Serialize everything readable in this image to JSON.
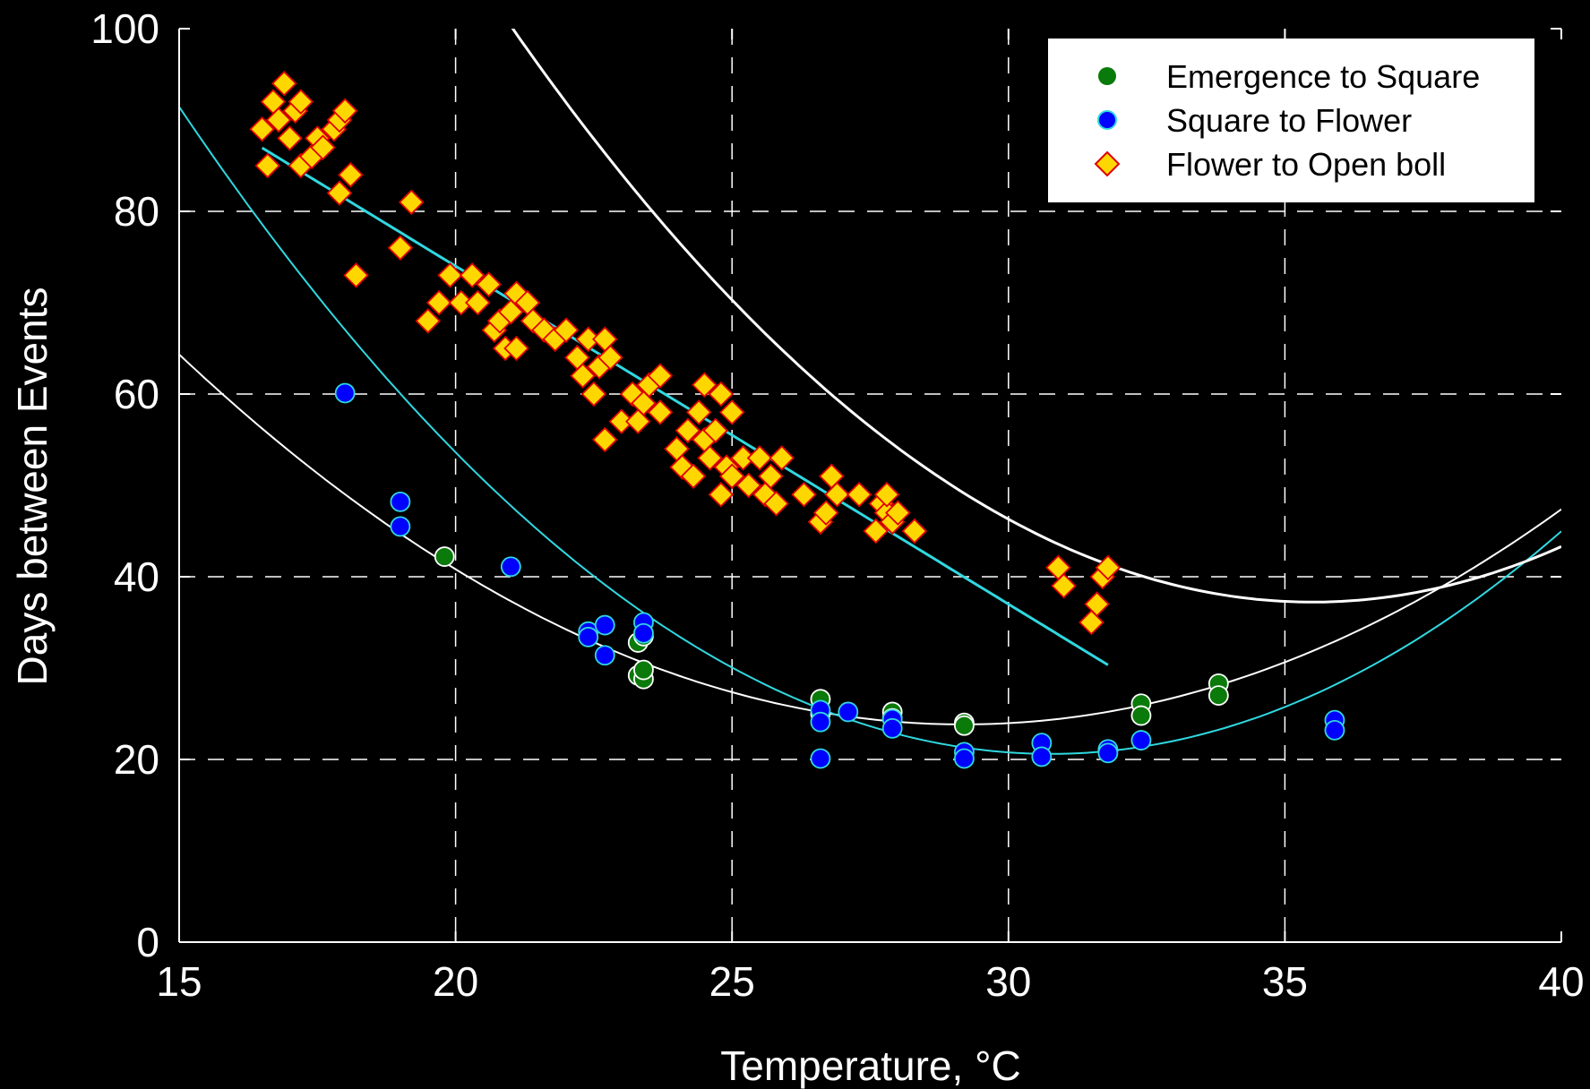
{
  "chart_data": {
    "type": "scatter",
    "xlabel": "Temperature, °C",
    "ylabel": "Days between Events",
    "xlim": [
      15,
      40
    ],
    "ylim": [
      0,
      100
    ],
    "x_ticks": [
      "15",
      "20",
      "25",
      "30",
      "35",
      "40"
    ],
    "y_ticks": [
      "0",
      "20",
      "40",
      "60",
      "80",
      "100"
    ],
    "grid": "dashed",
    "legend_position": "top-right",
    "series": [
      {
        "name": "Emergence to Square",
        "marker": "circle",
        "color": "#0a7a0a",
        "points": [
          [
            19.8,
            42.2
          ],
          [
            23.3,
            32.8
          ],
          [
            23.3,
            29.2
          ],
          [
            23.4,
            28.8
          ],
          [
            23.4,
            29.8
          ],
          [
            23.4,
            33.5
          ],
          [
            26.6,
            26.6
          ],
          [
            26.6,
            25.0
          ],
          [
            27.9,
            25.2
          ],
          [
            27.9,
            24.5
          ],
          [
            29.2,
            24.0
          ],
          [
            29.2,
            23.7
          ],
          [
            31.8,
            21.0
          ],
          [
            32.4,
            26.1
          ],
          [
            32.4,
            24.8
          ],
          [
            33.8,
            28.3
          ],
          [
            33.8,
            27.0
          ]
        ]
      },
      {
        "name": "Square to Flower",
        "marker": "circle",
        "color": "#0000ff",
        "points": [
          [
            18.0,
            60.1
          ],
          [
            19.0,
            48.2
          ],
          [
            19.0,
            45.5
          ],
          [
            21.0,
            41.1
          ],
          [
            22.4,
            34.0
          ],
          [
            22.4,
            33.4
          ],
          [
            22.7,
            34.7
          ],
          [
            22.7,
            31.4
          ],
          [
            23.4,
            35.0
          ],
          [
            23.4,
            33.8
          ],
          [
            26.6,
            25.4
          ],
          [
            26.6,
            24.1
          ],
          [
            26.6,
            20.1
          ],
          [
            27.1,
            25.2
          ],
          [
            27.9,
            24.4
          ],
          [
            27.9,
            23.4
          ],
          [
            29.2,
            20.8
          ],
          [
            29.2,
            20.1
          ],
          [
            30.6,
            21.8
          ],
          [
            30.6,
            20.3
          ],
          [
            31.8,
            21.1
          ],
          [
            31.8,
            20.7
          ],
          [
            32.4,
            22.1
          ],
          [
            35.9,
            24.3
          ],
          [
            35.9,
            23.2
          ]
        ]
      },
      {
        "name": "Flower to Open boll",
        "marker": "diamond",
        "color": "#ffd700",
        "points": [
          [
            16.5,
            89
          ],
          [
            16.6,
            85
          ],
          [
            16.7,
            92
          ],
          [
            16.8,
            90
          ],
          [
            16.9,
            94
          ],
          [
            17.0,
            88
          ],
          [
            17.1,
            91
          ],
          [
            17.2,
            92
          ],
          [
            17.2,
            85
          ],
          [
            17.4,
            86
          ],
          [
            17.5,
            88
          ],
          [
            17.6,
            87
          ],
          [
            17.8,
            89
          ],
          [
            17.9,
            82
          ],
          [
            17.9,
            90
          ],
          [
            18.0,
            91
          ],
          [
            18.1,
            84
          ],
          [
            18.2,
            73
          ],
          [
            19.0,
            76
          ],
          [
            19.2,
            81
          ],
          [
            19.5,
            68
          ],
          [
            19.7,
            70
          ],
          [
            19.9,
            73
          ],
          [
            20.1,
            70
          ],
          [
            20.3,
            73
          ],
          [
            20.4,
            70
          ],
          [
            20.6,
            72
          ],
          [
            20.7,
            67
          ],
          [
            20.8,
            68
          ],
          [
            20.9,
            65
          ],
          [
            21.0,
            69
          ],
          [
            21.1,
            71
          ],
          [
            21.1,
            65
          ],
          [
            21.3,
            70
          ],
          [
            21.4,
            68
          ],
          [
            21.6,
            67
          ],
          [
            21.8,
            66
          ],
          [
            22.0,
            67
          ],
          [
            22.2,
            64
          ],
          [
            22.3,
            62
          ],
          [
            22.4,
            66
          ],
          [
            22.5,
            60
          ],
          [
            22.6,
            63
          ],
          [
            22.7,
            66
          ],
          [
            22.7,
            55
          ],
          [
            22.8,
            64
          ],
          [
            23.0,
            57
          ],
          [
            23.2,
            60
          ],
          [
            23.3,
            57
          ],
          [
            23.4,
            59
          ],
          [
            23.5,
            61
          ],
          [
            23.7,
            58
          ],
          [
            23.7,
            62
          ],
          [
            24.0,
            54
          ],
          [
            24.1,
            52
          ],
          [
            24.2,
            56
          ],
          [
            24.3,
            51
          ],
          [
            24.4,
            58
          ],
          [
            24.5,
            55
          ],
          [
            24.5,
            61
          ],
          [
            24.6,
            53
          ],
          [
            24.7,
            56
          ],
          [
            24.8,
            49
          ],
          [
            24.8,
            60
          ],
          [
            24.9,
            52
          ],
          [
            25.0,
            58
          ],
          [
            25.0,
            51
          ],
          [
            25.2,
            53
          ],
          [
            25.3,
            50
          ],
          [
            25.5,
            53
          ],
          [
            25.6,
            49
          ],
          [
            25.7,
            51
          ],
          [
            25.8,
            48
          ],
          [
            25.9,
            53
          ],
          [
            26.3,
            49
          ],
          [
            26.6,
            46
          ],
          [
            26.7,
            47
          ],
          [
            26.8,
            51
          ],
          [
            26.9,
            49
          ],
          [
            27.3,
            49
          ],
          [
            27.6,
            45
          ],
          [
            27.7,
            48
          ],
          [
            27.8,
            47
          ],
          [
            27.8,
            49
          ],
          [
            27.9,
            46
          ],
          [
            28.0,
            47
          ],
          [
            28.3,
            45
          ],
          [
            30.9,
            41
          ],
          [
            31.0,
            39
          ],
          [
            31.5,
            35
          ],
          [
            31.6,
            37
          ],
          [
            31.7,
            40
          ],
          [
            31.8,
            41
          ]
        ]
      }
    ],
    "fits": [
      {
        "of": "Emergence to Square",
        "color": "#ffffff",
        "width": 2,
        "x_range": [
          15,
          40
        ],
        "a": 0.2013,
        "b": -11.75,
        "c": 195.3
      },
      {
        "of": "Square to Flower",
        "color": "#30d8e0",
        "width": 2,
        "x_range": [
          15,
          40
        ],
        "a": 0.2853,
        "b": -17.55,
        "c": 290.5
      },
      {
        "of": "Flower to Open boll",
        "color": "#ffffff",
        "width": 3,
        "x_range": [
          15.5,
          40
        ],
        "a": 0.3,
        "b": -21.3,
        "c": 415.3
      },
      {
        "of": "Flower to Open boll",
        "color": "#30d8e0",
        "width": 3,
        "x_range": [
          16.5,
          31.8
        ],
        "a": 0,
        "b": -3.7,
        "c": 148.0
      }
    ]
  }
}
